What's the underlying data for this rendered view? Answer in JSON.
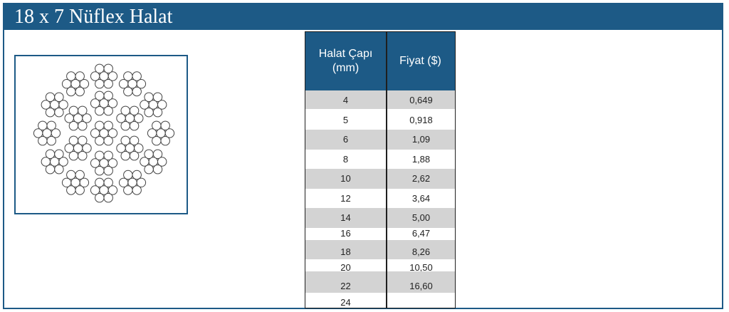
{
  "header": {
    "title": "18 x 7 Nüflex Halat"
  },
  "diagram": {
    "icon": "wire-rope-cross-section-icon"
  },
  "table": {
    "headers": [
      "Halat Çapı\n(mm)",
      "Fiyat ($)"
    ],
    "rows": [
      {
        "diameter": "4",
        "price": "0,649"
      },
      {
        "diameter": "5",
        "price": "0,918"
      },
      {
        "diameter": "6",
        "price": "1,09"
      },
      {
        "diameter": "8",
        "price": "1,88"
      },
      {
        "diameter": "10",
        "price": "2,62"
      },
      {
        "diameter": "12",
        "price": "3,64"
      },
      {
        "diameter": "14",
        "price": "5,00"
      },
      {
        "diameter": "16",
        "price": "6,47"
      },
      {
        "diameter": "18",
        "price": "8,26"
      },
      {
        "diameter": "20",
        "price": "10,50"
      },
      {
        "diameter": "22",
        "price": "16,60"
      },
      {
        "diameter": "24",
        "price": ""
      }
    ]
  },
  "colors": {
    "brand": "#1d5a86",
    "row_shade": "#d3d3d3"
  }
}
